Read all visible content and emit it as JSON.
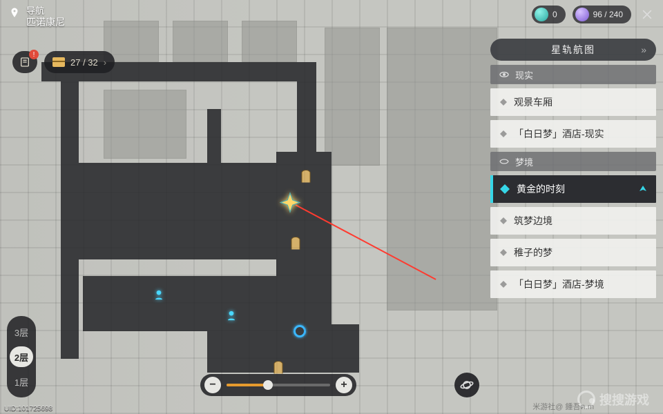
{
  "nav": {
    "label": "导航",
    "region": "匹诺康尼"
  },
  "currency": {
    "a": "0",
    "b": "96 / 240"
  },
  "chest": {
    "count": "27 / 32",
    "alert": "!"
  },
  "floors": {
    "items": [
      "3层",
      "2层",
      "1层"
    ],
    "active_index": 1
  },
  "uid": "UID:101725698",
  "zoom": {
    "percent": 40
  },
  "panel": {
    "title": "星轨航图",
    "cat1": "现实",
    "cat2": "梦境",
    "locs_reality": [
      "观景车厢",
      "「白日梦」酒店-现实"
    ],
    "locs_dream": [
      "黄金的时刻",
      "筑梦边境",
      "稚子的梦",
      "「白日梦」酒店-梦境"
    ],
    "selected": "黄金的时刻"
  },
  "watermark": "搜搜游戏",
  "watermark2": "米游社@ 鍾吾ฅ.m",
  "colors": {
    "accent": "#36d6e7",
    "zoom_fill": "#e69a2e",
    "alert": "#e04a3a",
    "dark_panel": "#2c2d31"
  }
}
